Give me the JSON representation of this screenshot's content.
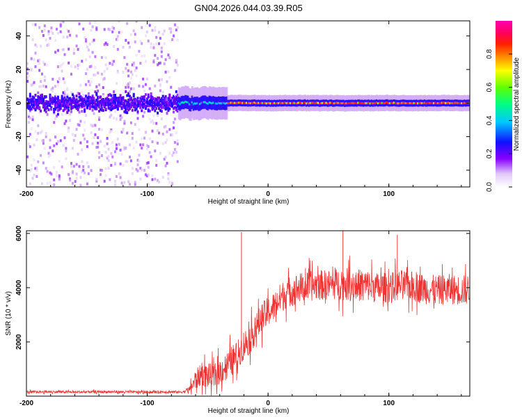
{
  "figure_title": "GN04.2026.044.03.39.R05",
  "chart_data": [
    {
      "type": "heatmap",
      "name": "spectrogram",
      "xlabel": "Height of straight line (km)",
      "ylabel": "Frequency (Hz)",
      "xlim": [
        -200,
        167
      ],
      "ylim": [
        -50,
        49
      ],
      "xticks": [
        -200,
        -100,
        0,
        100
      ],
      "xtick_labels": [
        "-200",
        "-100",
        "0",
        "100"
      ],
      "yticks": [
        -40,
        -20,
        0,
        20,
        40
      ],
      "ytick_labels": [
        "-40",
        "-20",
        "0",
        "20",
        "40"
      ],
      "colorbar": {
        "label": "Normalized spectral amplitude",
        "range": [
          0,
          1
        ],
        "ticks": [
          0.0,
          0.2,
          0.4,
          0.6,
          0.8
        ],
        "tick_labels": [
          "0.0",
          "0.2",
          "0.4",
          "0.6",
          "0.8"
        ],
        "colormap": "rainbow (white-violet-blue-cyan-green-yellow-red-magenta)"
      },
      "regions": [
        {
          "x_range": [
            -200,
            -75
          ],
          "description": "broadband noise, low amplitude",
          "freq_spread_hz": 49,
          "core_spread_hz": 8,
          "amplitude": 0.15
        },
        {
          "x_range": [
            -75,
            -35
          ],
          "description": "emerging carrier",
          "center_hz": 0,
          "spread_hz": 4,
          "amplitude": 0.45
        },
        {
          "x_range": [
            -35,
            167
          ],
          "description": "strong narrow carrier",
          "center_hz": 0,
          "spread_hz": 2,
          "amplitude": 0.9
        }
      ]
    },
    {
      "type": "line",
      "name": "snr",
      "xlabel": "Height of straight line (km)",
      "ylabel": "SNR (10 * v/v)",
      "xlim": [
        -200,
        167
      ],
      "ylim": [
        0,
        6100
      ],
      "xticks": [
        -200,
        -100,
        0,
        100
      ],
      "xtick_labels": [
        "-200",
        "-100",
        "0",
        "100"
      ],
      "yticks": [
        2000,
        4000,
        6000
      ],
      "ytick_labels": [
        "2000",
        "4000",
        "6000"
      ],
      "series": [
        {
          "name": "SNR",
          "color": "#ee3333",
          "x": [
            -200,
            -180,
            -160,
            -140,
            -120,
            -100,
            -80,
            -75,
            -70,
            -65,
            -60,
            -55,
            -50,
            -45,
            -40,
            -35,
            -30,
            -25,
            -23,
            -20,
            -15,
            -10,
            -5,
            0,
            5,
            10,
            15,
            20,
            25,
            30,
            40,
            50,
            60,
            70,
            80,
            90,
            100,
            110,
            120,
            130,
            140,
            150,
            160,
            167
          ],
          "values": [
            150,
            160,
            150,
            160,
            155,
            150,
            160,
            150,
            160,
            250,
            600,
            800,
            750,
            700,
            900,
            1100,
            1300,
            1500,
            1700,
            1900,
            2100,
            2500,
            2900,
            3100,
            3300,
            3600,
            3800,
            3900,
            4000,
            4000,
            4100,
            4100,
            4150,
            4100,
            4100,
            4000,
            4000,
            4100,
            4050,
            3950,
            3900,
            3950,
            3900,
            3950
          ],
          "noise_amplitude": [
            60,
            60,
            60,
            60,
            60,
            60,
            60,
            60,
            60,
            150,
            500,
            500,
            600,
            600,
            600,
            600,
            700,
            700,
            700,
            700,
            700,
            700,
            700,
            700,
            700,
            700,
            700,
            700,
            700,
            700,
            700,
            700,
            750,
            750,
            750,
            700,
            700,
            700,
            700,
            700,
            700,
            700,
            700,
            700
          ]
        }
      ],
      "spikes": [
        {
          "x": -22,
          "value": 6050
        },
        {
          "x": 62,
          "value": 6100
        },
        {
          "x": 107,
          "value": 5950
        }
      ]
    }
  ]
}
